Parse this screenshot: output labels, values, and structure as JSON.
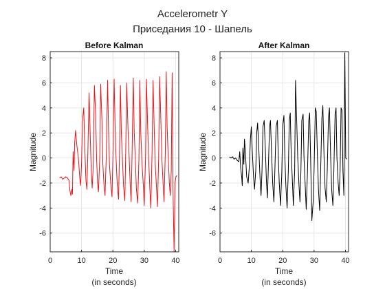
{
  "figure": {
    "title_line1": "Accelerometr Y",
    "title_line2": "Приседания 10 - Шапель"
  },
  "colors": {
    "before": "#e8141a",
    "after": "#000000",
    "grid": "#e6e6e6",
    "axis": "#262626"
  },
  "chart_data": [
    {
      "type": "line",
      "title": "Before Kalman",
      "xlabel_line1": "Time",
      "xlabel_line2": "(in seconds)",
      "ylabel": "Magnitude",
      "xlim": [
        0,
        41
      ],
      "ylim": [
        -7.5,
        8.5
      ],
      "xticks": [
        0,
        10,
        20,
        30,
        40
      ],
      "yticks": [
        -6,
        -4,
        -2,
        0,
        2,
        4,
        6,
        8
      ],
      "grid": true,
      "series": [
        {
          "color": "#e8141a",
          "x": [
            3.0,
            3.5,
            4.0,
            4.5,
            5.0,
            5.5,
            6.0,
            6.3,
            6.6,
            6.9,
            7.1,
            7.3,
            7.6,
            7.8,
            8.1,
            8.5,
            9.0,
            9.4,
            9.7,
            10.0,
            10.3,
            10.7,
            11.0,
            11.4,
            11.7,
            12.0,
            12.4,
            12.8,
            13.1,
            13.4,
            13.7,
            14.1,
            14.5,
            14.8,
            15.1,
            15.4,
            15.8,
            16.1,
            16.5,
            16.8,
            17.2,
            17.5,
            17.9,
            18.3,
            18.6,
            18.9,
            19.3,
            19.7,
            20.0,
            20.4,
            20.7,
            21.0,
            21.4,
            21.8,
            22.1,
            22.4,
            22.7,
            23.1,
            23.4,
            23.8,
            24.1,
            24.4,
            24.8,
            25.2,
            25.5,
            25.8,
            26.1,
            26.5,
            26.8,
            27.2,
            27.5,
            27.9,
            28.3,
            28.6,
            28.9,
            29.3,
            29.7,
            30.0,
            30.4,
            30.7,
            31.1,
            31.4,
            31.8,
            32.1,
            32.5,
            32.8,
            33.2,
            33.5,
            33.9,
            34.2,
            34.6,
            34.9,
            35.3,
            35.6,
            36.0,
            36.3,
            36.7,
            37.0,
            37.3,
            37.7,
            38.0,
            38.3,
            38.6,
            38.9,
            39.2,
            39.5,
            39.8,
            40.1,
            40.4
          ],
          "y": [
            -1.6,
            -1.5,
            -1.7,
            -1.6,
            -1.5,
            -1.6,
            -1.8,
            -2.6,
            -3.0,
            -2.5,
            -2.9,
            0.5,
            -1.0,
            1.2,
            2.2,
            1.0,
            0.0,
            -1.5,
            -2.2,
            -0.5,
            3.0,
            4.0,
            1.0,
            -1.8,
            -2.5,
            0.2,
            5.2,
            1.5,
            -1.0,
            -2.4,
            -0.8,
            5.8,
            3.5,
            0.0,
            -2.0,
            -2.7,
            0.0,
            5.9,
            3.0,
            -0.5,
            -2.3,
            -3.0,
            0.2,
            6.2,
            2.5,
            -0.5,
            -2.0,
            -3.1,
            0.0,
            6.3,
            2.6,
            0.0,
            -2.2,
            -3.3,
            0.2,
            5.8,
            2.0,
            -0.5,
            -2.2,
            -3.4,
            0.5,
            6.0,
            2.5,
            0.0,
            -2.0,
            -3.5,
            0.0,
            6.4,
            2.2,
            -0.5,
            -2.5,
            -3.6,
            0.0,
            6.2,
            2.0,
            -0.5,
            -2.2,
            -3.8,
            0.0,
            6.3,
            2.5,
            0.0,
            -2.5,
            -4.0,
            0.5,
            6.2,
            2.2,
            -0.5,
            -2.3,
            -3.9,
            0.0,
            6.5,
            3.0,
            0.0,
            -2.0,
            -3.5,
            0.3,
            6.9,
            2.5,
            -0.2,
            -2.0,
            -3.0,
            -1.0,
            6.8,
            -3.0,
            -7.5,
            -2.0,
            -1.5,
            -1.4
          ]
        }
      ]
    },
    {
      "type": "line",
      "title": "After Kalman",
      "xlabel_line1": "Time",
      "xlabel_line2": "(in seconds)",
      "ylabel": "Magnitude",
      "xlim": [
        0,
        41
      ],
      "ylim": [
        -7.5,
        8.5
      ],
      "xticks": [
        0,
        10,
        20,
        30,
        40
      ],
      "yticks": [
        -6,
        -4,
        -2,
        0,
        2,
        4,
        6,
        8
      ],
      "grid": true,
      "series": [
        {
          "color": "#000000",
          "x": [
            3.0,
            3.5,
            4.0,
            4.5,
            5.0,
            5.5,
            6.0,
            6.3,
            6.6,
            6.9,
            7.1,
            7.3,
            7.6,
            7.8,
            8.1,
            8.5,
            9.0,
            9.4,
            9.7,
            10.0,
            10.3,
            10.7,
            11.0,
            11.4,
            11.7,
            12.0,
            12.4,
            12.8,
            13.1,
            13.4,
            13.7,
            14.1,
            14.5,
            14.8,
            15.1,
            15.4,
            15.8,
            16.1,
            16.5,
            16.8,
            17.2,
            17.5,
            17.9,
            18.3,
            18.6,
            18.9,
            19.3,
            19.7,
            20.0,
            20.4,
            20.7,
            21.0,
            21.4,
            21.8,
            22.1,
            22.4,
            22.7,
            23.1,
            23.4,
            23.8,
            24.1,
            24.4,
            24.8,
            25.2,
            25.5,
            25.8,
            26.1,
            26.5,
            26.8,
            27.2,
            27.5,
            27.9,
            28.3,
            28.6,
            28.9,
            29.3,
            29.7,
            30.0,
            30.4,
            30.7,
            31.1,
            31.4,
            31.8,
            32.1,
            32.5,
            32.8,
            33.2,
            33.5,
            33.9,
            34.2,
            34.6,
            34.9,
            35.3,
            35.6,
            36.0,
            36.3,
            36.7,
            37.0,
            37.3,
            37.7,
            38.0,
            38.3,
            38.6,
            38.9,
            39.2,
            39.5,
            39.8,
            40.1,
            40.4
          ],
          "y": [
            0.1,
            0.0,
            0.1,
            -0.1,
            0.0,
            -0.2,
            -0.3,
            0.5,
            -0.8,
            -1.5,
            -2.2,
            0.8,
            -0.5,
            1.5,
            0.5,
            -1.5,
            -2.0,
            -0.5,
            1.5,
            2.5,
            0.5,
            -1.5,
            -2.5,
            -1.0,
            2.0,
            2.8,
            0.5,
            -1.8,
            -3.0,
            -1.0,
            2.5,
            3.0,
            0.5,
            -1.8,
            -3.2,
            -1.0,
            2.5,
            3.0,
            0.0,
            -2.0,
            -3.5,
            -1.0,
            2.5,
            3.0,
            0.0,
            -2.0,
            -3.8,
            -1.2,
            2.6,
            3.4,
            0.0,
            -2.2,
            -4.0,
            -1.0,
            3.0,
            3.6,
            0.5,
            -2.0,
            -3.8,
            -1.0,
            6.2,
            3.5,
            0.0,
            -2.2,
            -3.5,
            -1.0,
            3.0,
            3.5,
            0.0,
            -2.4,
            -4.1,
            -1.0,
            3.0,
            3.6,
            0.0,
            -5.0,
            -3.5,
            -1.0,
            4.0,
            3.7,
            0.0,
            -2.5,
            -4.2,
            -1.0,
            3.2,
            4.2,
            0.0,
            -2.4,
            -3.5,
            -1.0,
            3.3,
            4.0,
            0.0,
            -2.5,
            -3.8,
            -1.0,
            3.5,
            4.0,
            0.0,
            -2.0,
            -3.0,
            -1.0,
            4.0,
            3.8,
            -1.0,
            -3.0,
            8.4,
            0.0,
            -0.1
          ]
        }
      ]
    }
  ]
}
